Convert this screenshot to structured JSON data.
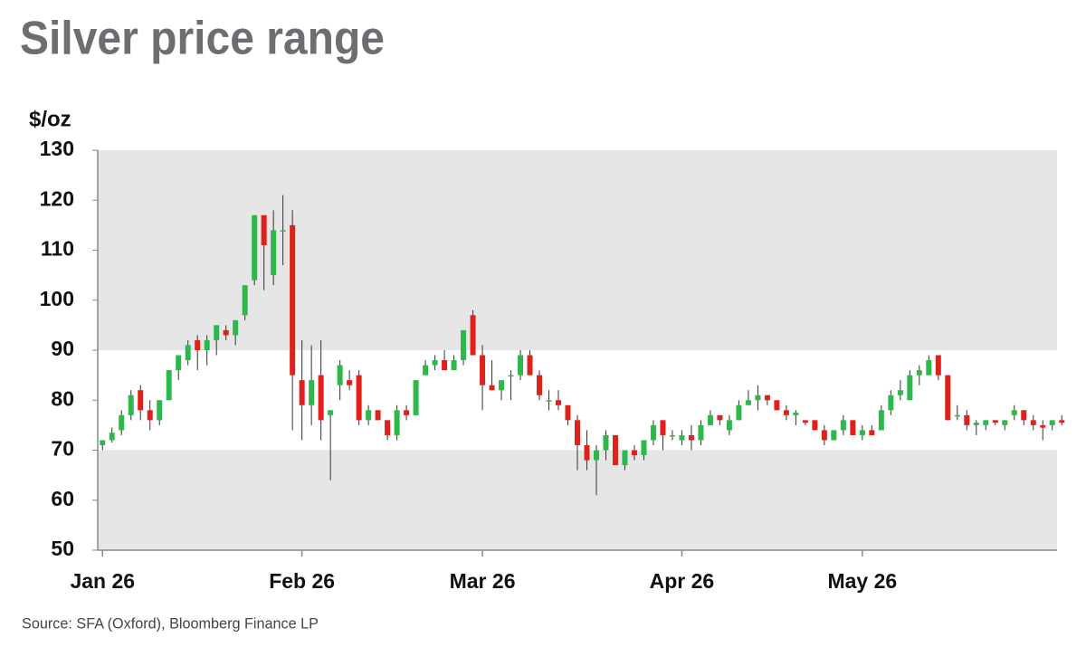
{
  "chart_data": {
    "type": "candlestick",
    "title": "Silver price range",
    "y_label": "$/oz",
    "source": "Source: SFA (Oxford), Bloomberg Finance LP",
    "up_color": "#2db84b",
    "down_color": "#e0201b",
    "band_color": "#e6e6e6",
    "bands": [
      [
        90,
        130
      ],
      [
        50,
        70
      ]
    ],
    "ylim": [
      50,
      130
    ],
    "yticks": [
      50,
      60,
      70,
      80,
      90,
      100,
      110,
      120,
      130
    ],
    "categories": [
      "Jan 26",
      null,
      null,
      null,
      null,
      null,
      null,
      null,
      null,
      null,
      null,
      null,
      null,
      null,
      null,
      null,
      null,
      null,
      null,
      null,
      null,
      "Feb 26",
      null,
      null,
      null,
      null,
      null,
      null,
      null,
      null,
      null,
      null,
      null,
      null,
      null,
      null,
      null,
      null,
      null,
      null,
      "Mar 26",
      null,
      null,
      null,
      null,
      null,
      null,
      null,
      null,
      null,
      null,
      null,
      null,
      null,
      null,
      null,
      null,
      null,
      null,
      null,
      null,
      "Apr 26",
      null,
      null,
      null,
      null,
      null,
      null,
      null,
      null,
      null,
      null,
      null,
      null,
      null,
      null,
      null,
      null,
      null,
      null,
      "May 26",
      null,
      null,
      null,
      null,
      null,
      null,
      null,
      null,
      null,
      null,
      null,
      null,
      null,
      null,
      null,
      null,
      null,
      null,
      null,
      null
    ],
    "ohlc": [
      [
        71,
        72,
        70,
        72
      ],
      [
        72,
        74.5,
        71.5,
        73.5
      ],
      [
        74,
        78,
        73,
        77
      ],
      [
        77,
        82,
        76,
        81
      ],
      [
        82,
        83,
        76,
        78
      ],
      [
        78,
        80,
        74,
        76
      ],
      [
        76,
        80,
        75,
        80
      ],
      [
        80,
        86,
        80,
        86
      ],
      [
        86,
        89,
        84,
        89
      ],
      [
        88,
        92,
        87,
        91
      ],
      [
        92,
        93,
        86,
        90
      ],
      [
        90,
        93,
        87,
        92
      ],
      [
        92,
        95,
        89,
        95
      ],
      [
        94,
        95,
        92,
        93
      ],
      [
        93,
        96,
        91,
        96
      ],
      [
        97,
        103,
        96,
        103
      ],
      [
        104,
        117,
        103,
        117
      ],
      [
        117,
        117,
        102,
        111
      ],
      [
        105,
        118,
        103,
        114
      ],
      [
        114,
        121,
        107,
        114
      ],
      [
        115,
        118,
        74,
        85
      ],
      [
        84,
        92,
        72,
        79
      ],
      [
        79,
        91,
        75,
        84
      ],
      [
        85,
        92,
        72,
        76
      ],
      [
        77,
        78,
        64,
        78
      ],
      [
        83,
        88,
        80,
        87
      ],
      [
        84,
        86,
        82,
        83
      ],
      [
        85,
        86,
        75,
        76
      ],
      [
        76,
        79,
        75,
        78
      ],
      [
        78,
        78,
        76,
        76
      ],
      [
        76,
        76,
        72,
        73
      ],
      [
        73,
        79,
        72,
        78
      ],
      [
        78,
        79,
        76,
        77
      ],
      [
        77,
        84,
        77,
        84
      ],
      [
        85,
        88,
        85,
        87
      ],
      [
        87,
        89,
        86,
        88
      ],
      [
        88,
        90,
        86,
        86
      ],
      [
        86,
        89,
        86,
        88
      ],
      [
        88,
        94,
        87,
        94
      ],
      [
        97,
        98,
        89,
        89
      ],
      [
        89,
        91,
        78,
        83
      ],
      [
        83,
        88,
        82,
        82
      ],
      [
        82,
        84,
        80,
        84
      ],
      [
        85,
        86,
        80,
        85
      ],
      [
        85,
        90,
        84,
        89
      ],
      [
        89,
        90,
        85,
        85
      ],
      [
        85,
        86,
        80,
        81
      ],
      [
        80,
        82,
        78,
        80
      ],
      [
        80,
        82,
        78,
        79
      ],
      [
        79,
        79,
        75,
        76
      ],
      [
        76,
        77,
        66,
        71
      ],
      [
        71,
        74,
        66,
        68
      ],
      [
        68,
        71,
        61,
        70
      ],
      [
        70,
        74,
        68,
        73
      ],
      [
        73,
        73,
        67,
        67
      ],
      [
        67,
        70,
        66,
        70
      ],
      [
        70,
        71,
        68,
        69
      ],
      [
        69,
        72,
        68,
        72
      ],
      [
        72,
        76,
        71,
        75
      ],
      [
        76,
        76,
        70,
        73
      ],
      [
        73,
        74,
        72,
        73
      ],
      [
        72,
        74,
        71,
        73
      ],
      [
        73,
        75,
        70,
        72
      ],
      [
        72,
        76,
        71,
        75
      ],
      [
        75,
        78,
        75,
        77
      ],
      [
        77,
        77,
        75,
        76
      ],
      [
        74,
        77,
        73,
        76
      ],
      [
        76,
        80,
        76,
        79
      ],
      [
        79,
        82,
        79,
        80
      ],
      [
        80,
        83,
        78,
        81
      ],
      [
        81,
        81,
        79,
        80
      ],
      [
        80,
        80,
        78,
        78
      ],
      [
        78,
        79,
        76,
        77
      ],
      [
        77,
        78,
        75,
        77.5
      ],
      [
        76,
        76,
        75,
        75.5
      ],
      [
        76,
        76,
        74,
        74
      ],
      [
        74,
        75,
        71,
        72
      ],
      [
        72,
        74,
        72,
        74
      ],
      [
        74,
        77,
        73,
        76
      ],
      [
        76,
        76,
        73,
        73
      ],
      [
        73,
        75,
        72,
        74
      ],
      [
        74,
        75,
        73,
        73
      ],
      [
        74,
        79,
        74,
        78
      ],
      [
        78,
        82,
        77,
        81
      ],
      [
        81,
        84,
        80,
        82
      ],
      [
        80,
        86,
        80,
        85
      ],
      [
        85,
        87,
        83,
        86
      ],
      [
        85,
        89,
        85,
        88
      ],
      [
        89,
        89,
        84,
        85
      ],
      [
        85,
        85,
        76,
        76
      ],
      [
        77,
        79,
        76,
        77
      ],
      [
        77,
        78,
        74,
        75
      ],
      [
        75,
        76,
        73,
        75.5
      ],
      [
        75,
        76,
        74,
        76
      ],
      [
        76,
        76,
        75,
        75.5
      ],
      [
        75,
        76,
        74,
        76
      ],
      [
        77,
        79,
        76,
        78
      ],
      [
        78,
        78,
        75,
        76
      ],
      [
        76,
        77,
        74,
        75
      ],
      [
        75,
        76,
        72,
        74.5
      ],
      [
        75,
        76,
        74,
        76
      ],
      [
        76,
        77,
        75,
        75.5
      ]
    ]
  }
}
